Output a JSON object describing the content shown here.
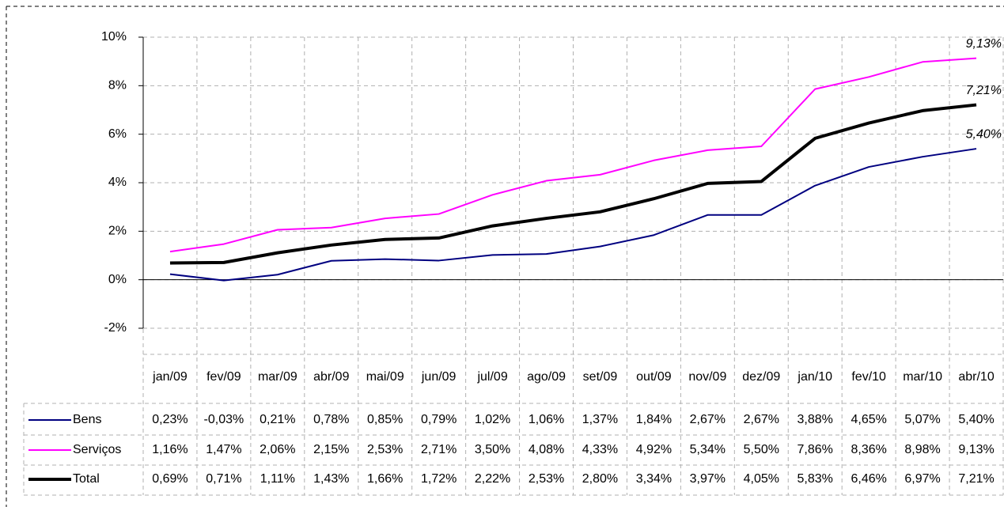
{
  "chart_data": {
    "type": "line",
    "categories": [
      "jan/09",
      "fev/09",
      "mar/09",
      "abr/09",
      "mai/09",
      "jun/09",
      "jul/09",
      "ago/09",
      "set/09",
      "out/09",
      "nov/09",
      "dez/09",
      "jan/10",
      "fev/10",
      "mar/10",
      "abr/10"
    ],
    "series": [
      {
        "name": "Bens",
        "color": "#000080",
        "width": 2,
        "values": [
          0.23,
          -0.03,
          0.21,
          0.78,
          0.85,
          0.79,
          1.02,
          1.06,
          1.37,
          1.84,
          2.67,
          2.67,
          3.88,
          4.65,
          5.07,
          5.4
        ],
        "value_labels": [
          "0,23%",
          "-0,03%",
          "0,21%",
          "0,78%",
          "0,85%",
          "0,79%",
          "1,02%",
          "1,06%",
          "1,37%",
          "1,84%",
          "2,67%",
          "2,67%",
          "3,88%",
          "4,65%",
          "5,07%",
          "5,40%"
        ]
      },
      {
        "name": "Serviços",
        "color": "#ff00ff",
        "width": 2,
        "values": [
          1.16,
          1.47,
          2.06,
          2.15,
          2.53,
          2.71,
          3.5,
          4.08,
          4.33,
          4.92,
          5.34,
          5.5,
          7.86,
          8.36,
          8.98,
          9.13
        ],
        "value_labels": [
          "1,16%",
          "1,47%",
          "2,06%",
          "2,15%",
          "2,53%",
          "2,71%",
          "3,50%",
          "4,08%",
          "4,33%",
          "4,92%",
          "5,34%",
          "5,50%",
          "7,86%",
          "8,36%",
          "8,98%",
          "9,13%"
        ]
      },
      {
        "name": "Total",
        "color": "#000000",
        "width": 4,
        "values": [
          0.69,
          0.71,
          1.11,
          1.43,
          1.66,
          1.72,
          2.22,
          2.53,
          2.8,
          3.34,
          3.97,
          4.05,
          5.83,
          6.46,
          6.97,
          7.21
        ],
        "value_labels": [
          "0,69%",
          "0,71%",
          "1,11%",
          "1,43%",
          "1,66%",
          "1,72%",
          "2,22%",
          "2,53%",
          "2,80%",
          "3,34%",
          "3,97%",
          "4,05%",
          "5,83%",
          "6,46%",
          "6,97%",
          "7,21%"
        ]
      }
    ],
    "ylim": [
      -2,
      10
    ],
    "yticks": [
      {
        "value": -2,
        "label": "-2%"
      },
      {
        "value": 0,
        "label": "0%"
      },
      {
        "value": 2,
        "label": "2%"
      },
      {
        "value": 4,
        "label": "4%"
      },
      {
        "value": 6,
        "label": "6%"
      },
      {
        "value": 8,
        "label": "8%"
      },
      {
        "value": 10,
        "label": "10%"
      }
    ],
    "grid": true
  }
}
